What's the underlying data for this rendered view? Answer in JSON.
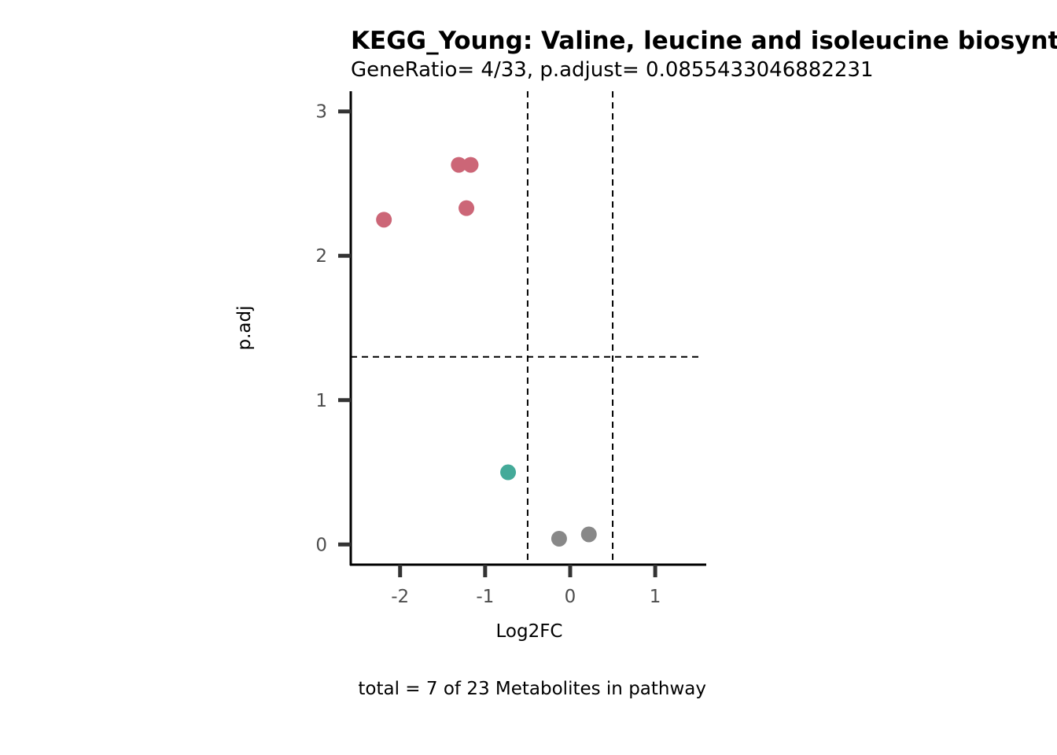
{
  "chart_data": {
    "type": "scatter",
    "title": "KEGG_Young: Valine, leucine and isoleucine biosynthesis",
    "subtitle": "GeneRatio= 4/33, p.adjust= 0.0855433046882231",
    "xlabel": "Log2FC",
    "ylabel": "p.adj",
    "caption": "total = 7 of 23 Metabolites in pathway",
    "xlim": [
      -2.58,
      1.6
    ],
    "ylim": [
      -0.14,
      3.14
    ],
    "x_ticks": [
      -2,
      -1,
      0,
      1
    ],
    "x_tick_labels": [
      "-2",
      "-1",
      "0",
      "1"
    ],
    "y_ticks": [
      0,
      1,
      2,
      3
    ],
    "y_tick_labels": [
      "0",
      "1",
      "2",
      "3"
    ],
    "vlines": [
      -0.5,
      0.5
    ],
    "hline": 1.3,
    "grid": false,
    "legend": "none",
    "colors": {
      "up": "#cc6677",
      "down": "#44aa99",
      "ns": "#888888"
    },
    "points": [
      {
        "x": -1.31,
        "y": 2.63,
        "group": "up"
      },
      {
        "x": -1.17,
        "y": 2.63,
        "group": "up"
      },
      {
        "x": -1.22,
        "y": 2.33,
        "group": "up"
      },
      {
        "x": -2.19,
        "y": 2.25,
        "group": "up"
      },
      {
        "x": -0.73,
        "y": 0.5,
        "group": "down"
      },
      {
        "x": -0.13,
        "y": 0.04,
        "group": "ns"
      },
      {
        "x": 0.22,
        "y": 0.07,
        "group": "ns"
      }
    ]
  }
}
